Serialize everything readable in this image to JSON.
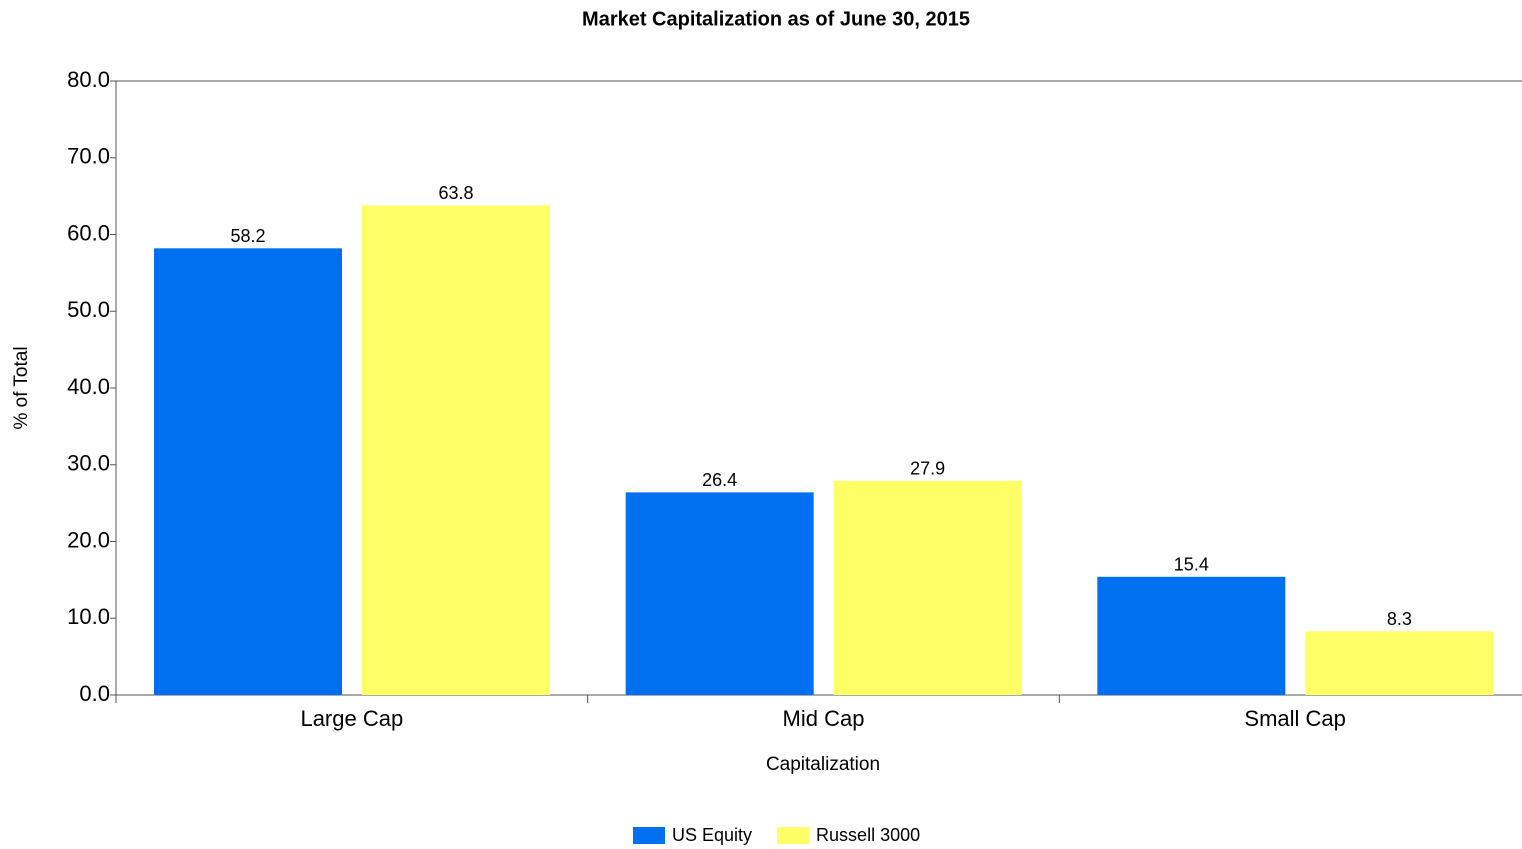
{
  "chart_data": {
    "type": "bar",
    "title": "Market Capitalization as of June 30, 2015",
    "xlabel": "Capitalization",
    "ylabel": "% of Total",
    "categories": [
      "Large Cap",
      "Mid Cap",
      "Small Cap"
    ],
    "series": [
      {
        "name": "US Equity",
        "color": "#0070f0",
        "values": [
          58.2,
          26.4,
          15.4
        ]
      },
      {
        "name": "Russell 3000",
        "color": "#ffff66",
        "values": [
          63.8,
          27.9,
          8.3
        ]
      }
    ],
    "ylim": [
      0,
      80
    ],
    "yticks": [
      {
        "value": 0,
        "label": "0.0"
      },
      {
        "value": 10,
        "label": "10.0"
      },
      {
        "value": 20,
        "label": "20.0"
      },
      {
        "value": 30,
        "label": "30.0"
      },
      {
        "value": 40,
        "label": "40.0"
      },
      {
        "value": 50,
        "label": "50.0"
      },
      {
        "value": 60,
        "label": "60.0"
      },
      {
        "value": 70,
        "label": "70.0"
      },
      {
        "value": 80,
        "label": "80.0"
      }
    ],
    "grid": false,
    "legend": "bottom"
  }
}
